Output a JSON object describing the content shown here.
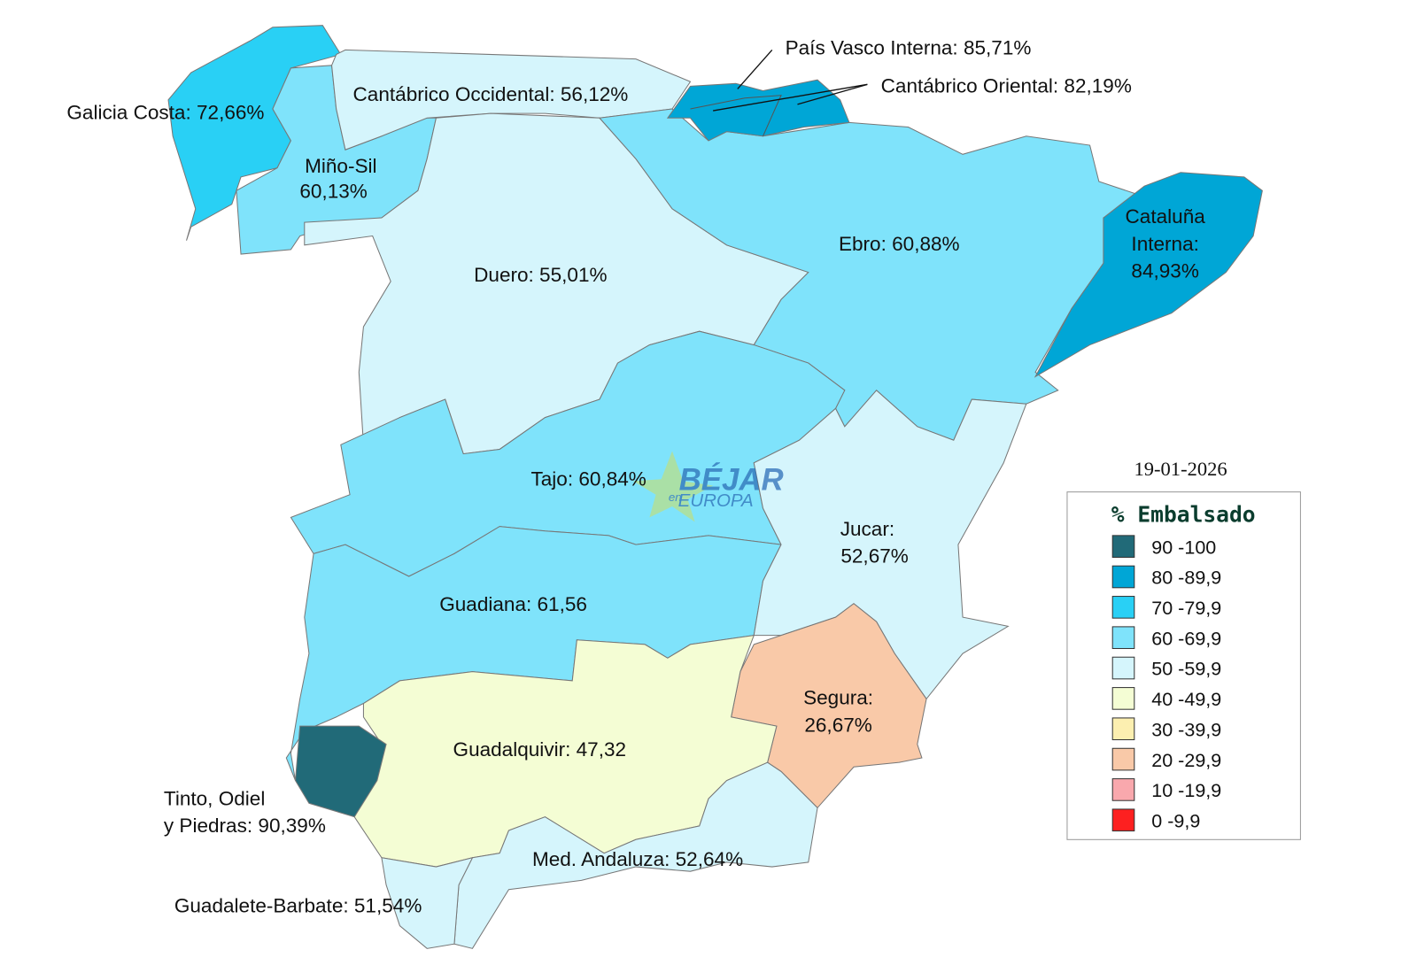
{
  "date": "19-01-2026",
  "legend": {
    "title": "% Embalsado",
    "items": [
      "90 -100",
      "80 -89,9",
      "70 -79,9",
      "60 -69,9",
      "50 -59,9",
      "40 -49,9",
      "30 -39,9",
      "20 -29,9",
      "10 -19,9",
      "0 -9,9"
    ]
  },
  "watermark": {
    "brand": "BÉJAR",
    "small": "en",
    "sub": "EUROPA"
  },
  "regions": [
    {
      "lines": [
        "Galicia Costa: 72,66%"
      ]
    },
    {
      "lines": [
        "Cantábrico Occidental: 56,12%"
      ]
    },
    {
      "lines": [
        "País Vasco Interna: 85,71%"
      ]
    },
    {
      "lines": [
        "Cantábrico Oriental: 82,19%"
      ]
    },
    {
      "lines": [
        "Miño-Sil",
        "60,13%"
      ]
    },
    {
      "lines": [
        "Duero: 55,01%"
      ]
    },
    {
      "lines": [
        "Ebro: 60,88%"
      ]
    },
    {
      "lines": [
        "Cataluña",
        "Interna:",
        "84,93%"
      ]
    },
    {
      "lines": [
        "Tajo: 60,84%"
      ]
    },
    {
      "lines": [
        "Jucar:",
        "52,67%"
      ]
    },
    {
      "lines": [
        "Guadiana: 61,56"
      ]
    },
    {
      "lines": [
        "Segura:",
        "26,67%"
      ]
    },
    {
      "lines": [
        "Guadalquivir: 47,32"
      ]
    },
    {
      "lines": [
        "Tinto, Odiel",
        "y Piedras: 90,39%"
      ]
    },
    {
      "lines": [
        "Med. Andaluza: 52,64%"
      ]
    },
    {
      "lines": [
        "Guadalete-Barbate: 51,54%"
      ]
    }
  ]
}
